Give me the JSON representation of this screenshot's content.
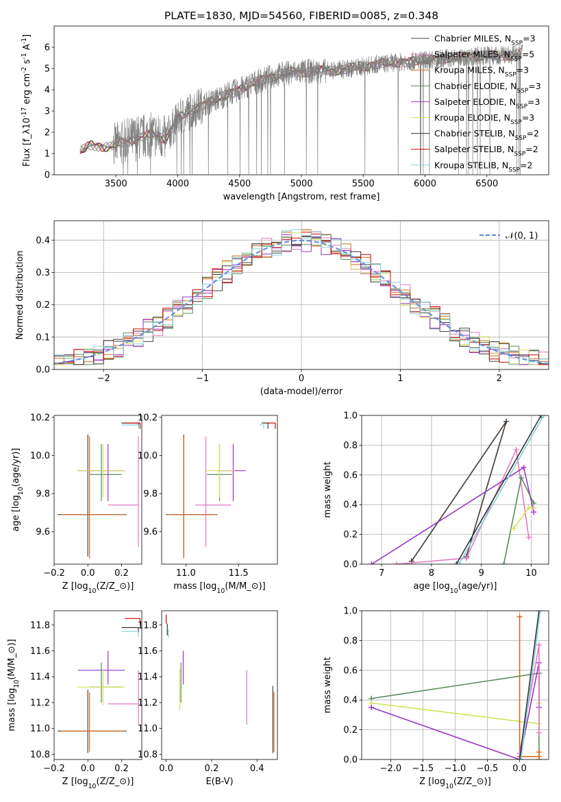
{
  "figure_title": "PLATE=1830, MJD=54560, FIBERID=0085, z=0.348",
  "model_colors": {
    "Chabrier MILES": "#444444",
    "Salpeter MILES": "#e377c2",
    "Kroupa MILES": "#d2691e",
    "Chabrier ELODIE": "#5a8a5a",
    "Salpeter ELODIE": "#9932cc",
    "Kroupa ELODIE": "#d4e157",
    "Chabrier STELIB": "#333333",
    "Salpeter STELIB": "#cc0000",
    "Kroupa STELIB": "#80d0d8"
  },
  "chart_data": [
    {
      "type": "line",
      "title": "PLATE=1830, MJD=54560, FIBERID=0085, z=0.348",
      "xlabel": "wavelength [Angstrom, rest frame]",
      "ylabel": "Flux [f$_\\lambda$$10^{-17}$ erg cm$^{-2}$ s$^{-1}$ A$^{-1}$]",
      "xlim": [
        3000,
        7000
      ],
      "ylim": [
        0,
        7
      ],
      "xticks": [
        3500,
        4000,
        4500,
        5000,
        5500,
        6000,
        6500
      ],
      "yticks": [
        0,
        1,
        2,
        3,
        4,
        5,
        6
      ],
      "legend_position": "top-right",
      "legend": [
        {
          "label": "Chabrier MILES, N$_{SSP}$=3",
          "color": "#444444"
        },
        {
          "label": "Salpeter MILES, N$_{SSP}$=5",
          "color": "#e377c2"
        },
        {
          "label": "Kroupa MILES, N$_{SSP}$=3",
          "color": "#d2691e"
        },
        {
          "label": "Chabrier ELODIE, N$_{SSP}$=3",
          "color": "#5a8a5a"
        },
        {
          "label": "Salpeter ELODIE, N$_{SSP}$=3",
          "color": "#9932cc"
        },
        {
          "label": "Kroupa ELODIE, N$_{SSP}$=3",
          "color": "#d4e157"
        },
        {
          "label": "Chabrier STELIB, N$_{SSP}$=2",
          "color": "#333333"
        },
        {
          "label": "Salpeter STELIB, N$_{SSP}$=2",
          "color": "#cc0000"
        },
        {
          "label": "Kroupa STELIB, N$_{SSP}$=2",
          "color": "#80d0d8"
        }
      ],
      "continuum": [
        [
          3210,
          1.1
        ],
        [
          3300,
          1.4
        ],
        [
          3450,
          1.3
        ],
        [
          3550,
          1.5
        ],
        [
          3650,
          1.7
        ],
        [
          3800,
          1.9
        ],
        [
          3900,
          1.7
        ],
        [
          4000,
          2.6
        ],
        [
          4100,
          3.0
        ],
        [
          4200,
          3.3
        ],
        [
          4300,
          3.5
        ],
        [
          4400,
          3.8
        ],
        [
          4500,
          4.0
        ],
        [
          4600,
          4.3
        ],
        [
          4700,
          4.5
        ],
        [
          4800,
          4.7
        ],
        [
          4900,
          4.8
        ],
        [
          5000,
          4.85
        ],
        [
          5200,
          4.9
        ],
        [
          5400,
          5.0
        ],
        [
          5600,
          5.2
        ],
        [
          5800,
          5.3
        ],
        [
          6000,
          5.4
        ],
        [
          6200,
          5.5
        ],
        [
          6400,
          5.6
        ],
        [
          6600,
          5.6
        ],
        [
          6780,
          5.7
        ]
      ]
    },
    {
      "type": "line",
      "xlabel": "(data-model)/error",
      "ylabel": "Normed distribution",
      "xlim": [
        -2.5,
        2.5
      ],
      "ylim": [
        0,
        0.46
      ],
      "xticks": [
        -2,
        -1,
        0,
        1,
        2
      ],
      "yticks": [
        0.0,
        0.1,
        0.2,
        0.3,
        0.4
      ],
      "grid": true,
      "legend_position": "top-right",
      "legend": [
        {
          "label": "$\\mathcal{N}(0,1)$",
          "color": "#6a8fd8",
          "style": "dashed"
        }
      ],
      "gaussian": {
        "mean": 0,
        "sigma": 1
      }
    },
    {
      "type": "scatter",
      "panel": "age-vs-Z",
      "xlabel": "Z [log$_{10}$(Z/Z$_\\odot$)]",
      "ylabel": "age  [log$_{10}$(age/yr)]",
      "xlim": [
        -0.2,
        0.32
      ],
      "ylim": [
        9.43,
        10.21
      ],
      "xticks": [
        -0.2,
        0.0,
        0.2
      ],
      "yticks": [
        9.6,
        9.8,
        10.0,
        10.2
      ],
      "points": [
        {
          "model": "Chabrier MILES",
          "x": 0.0,
          "xerr": [
            0.18,
            0.23
          ],
          "y": 9.69,
          "yerr": [
            0.22,
            0.42
          ]
        },
        {
          "model": "Kroupa MILES",
          "x": 0.01,
          "xerr": [
            0.17,
            0.21
          ],
          "y": 9.69,
          "yerr": [
            0.23,
            0.41
          ]
        },
        {
          "model": "Salpeter MILES",
          "x": 0.3,
          "xerr": [
            0.18,
            0.0
          ],
          "y": 9.74,
          "yerr": [
            0.22,
            0.36
          ]
        },
        {
          "model": "Chabrier ELODIE",
          "x": 0.08,
          "xerr": [
            0.07,
            0.12
          ],
          "y": 9.9,
          "yerr": [
            0.14,
            0.16
          ]
        },
        {
          "model": "Salpeter ELODIE",
          "x": 0.12,
          "xerr": [
            0.18,
            0.1
          ],
          "y": 9.92,
          "yerr": [
            0.16,
            0.14
          ]
        },
        {
          "model": "Kroupa ELODIE",
          "x": 0.09,
          "xerr": [
            0.15,
            0.13
          ],
          "y": 9.92,
          "yerr": [
            0.14,
            0.14
          ]
        },
        {
          "model": "Chabrier STELIB",
          "x": 0.3,
          "xerr": [
            0.1,
            0.0
          ],
          "y": 10.17,
          "yerr": [
            0.03,
            0.0
          ]
        },
        {
          "model": "Salpeter STELIB",
          "x": 0.31,
          "xerr": [
            0.09,
            0.0
          ],
          "y": 10.17,
          "yerr": [
            0.03,
            0.0
          ]
        },
        {
          "model": "Kroupa STELIB",
          "x": 0.3,
          "xerr": [
            0.1,
            0.0
          ],
          "y": 10.16,
          "yerr": [
            0.02,
            0.0
          ]
        }
      ]
    },
    {
      "type": "scatter",
      "panel": "age-vs-mass",
      "xlabel": "mass [log$_{10}$(M/M$_\\odot$)]",
      "ylabel": "",
      "xlim": [
        10.77,
        11.87
      ],
      "ylim": [
        9.43,
        10.21
      ],
      "xticks": [
        11.0,
        11.5
      ],
      "yticks": [
        9.6,
        9.8,
        10.0,
        10.2
      ],
      "points": [
        {
          "model": "Chabrier MILES",
          "x": 10.98,
          "xerr": [
            0.17,
            0.32
          ],
          "y": 9.69,
          "yerr": [
            0.22,
            0.42
          ]
        },
        {
          "model": "Kroupa MILES",
          "x": 10.98,
          "xerr": [
            0.16,
            0.3
          ],
          "y": 9.69,
          "yerr": [
            0.23,
            0.41
          ]
        },
        {
          "model": "Salpeter MILES",
          "x": 11.19,
          "xerr": [
            0.1,
            0.24
          ],
          "y": 9.74,
          "yerr": [
            0.22,
            0.36
          ]
        },
        {
          "model": "Chabrier ELODIE",
          "x": 11.32,
          "xerr": [
            0.12,
            0.12
          ],
          "y": 9.9,
          "yerr": [
            0.14,
            0.16
          ]
        },
        {
          "model": "Salpeter ELODIE",
          "x": 11.45,
          "xerr": [
            0.15,
            0.12
          ],
          "y": 9.92,
          "yerr": [
            0.16,
            0.14
          ]
        },
        {
          "model": "Kroupa ELODIE",
          "x": 11.32,
          "xerr": [
            0.14,
            0.14
          ],
          "y": 9.92,
          "yerr": [
            0.14,
            0.14
          ]
        },
        {
          "model": "Chabrier STELIB",
          "x": 11.78,
          "xerr": [
            0.06,
            0.0
          ],
          "y": 10.17,
          "yerr": [
            0.03,
            0.0
          ]
        },
        {
          "model": "Salpeter STELIB",
          "x": 11.85,
          "xerr": [
            0.08,
            0.0
          ],
          "y": 10.17,
          "yerr": [
            0.03,
            0.0
          ]
        },
        {
          "model": "Kroupa STELIB",
          "x": 11.74,
          "xerr": [
            0.04,
            0.0
          ],
          "y": 10.16,
          "yerr": [
            0.02,
            0.0
          ]
        }
      ]
    },
    {
      "type": "line",
      "panel": "weight-vs-age",
      "xlabel": "age  [log$_{10}$(age/yr)]",
      "ylabel": "mass weight",
      "xlim": [
        6.6,
        10.35
      ],
      "ylim": [
        0,
        1
      ],
      "xticks": [
        7,
        8,
        9,
        10
      ],
      "yticks": [
        0.0,
        0.2,
        0.4,
        0.6,
        0.8,
        1.0
      ],
      "grid": true,
      "series": [
        {
          "model": "Kroupa MILES",
          "x": [
            8.7,
            9.5,
            7.6
          ],
          "y": [
            0.05,
            0.96,
            0.02
          ]
        },
        {
          "model": "Chabrier MILES",
          "x": [
            8.7,
            9.5,
            7.6
          ],
          "y": [
            0.05,
            0.96,
            0.02
          ]
        },
        {
          "model": "Salpeter MILES",
          "x": [
            7.3,
            8.7,
            9.7,
            9.95
          ],
          "y": [
            0.0,
            0.04,
            0.77,
            0.18
          ]
        },
        {
          "model": "Salpeter ELODIE",
          "x": [
            6.8,
            9.85,
            10.05
          ],
          "y": [
            0.0,
            0.65,
            0.35
          ]
        },
        {
          "model": "Chabrier ELODIE",
          "x": [
            9.45,
            9.8,
            10.05
          ],
          "y": [
            0.0,
            0.58,
            0.41
          ]
        },
        {
          "model": "Kroupa ELODIE",
          "x": [
            9.65,
            9.95,
            10.05
          ],
          "y": [
            0.24,
            0.38,
            0.38
          ]
        },
        {
          "model": "Chabrier STELIB",
          "x": [
            8.5,
            10.2
          ],
          "y": [
            0.0,
            1.0
          ]
        },
        {
          "model": "Kroupa STELIB",
          "x": [
            8.55,
            10.25
          ],
          "y": [
            0.0,
            1.0
          ]
        }
      ]
    },
    {
      "type": "scatter",
      "panel": "mass-vs-Z",
      "xlabel": "Z [log$_{10}$(Z/Z$_\\odot$)]",
      "ylabel": "mass [log$_{10}$(M/M$_\\odot$)]",
      "xlim": [
        -0.2,
        0.32
      ],
      "ylim": [
        10.76,
        11.91
      ],
      "xticks": [
        -0.2,
        0.0,
        0.2
      ],
      "yticks": [
        10.8,
        11.0,
        11.2,
        11.4,
        11.6,
        11.8
      ],
      "points": [
        {
          "model": "Chabrier MILES",
          "x": 0.0,
          "xerr": [
            0.18,
            0.23
          ],
          "y": 10.98,
          "yerr": [
            0.17,
            0.32
          ]
        },
        {
          "model": "Kroupa MILES",
          "x": 0.01,
          "xerr": [
            0.17,
            0.21
          ],
          "y": 10.98,
          "yerr": [
            0.16,
            0.3
          ]
        },
        {
          "model": "Salpeter MILES",
          "x": 0.3,
          "xerr": [
            0.18,
            0.0
          ],
          "y": 11.19,
          "yerr": [
            0.16,
            0.26
          ]
        },
        {
          "model": "Chabrier ELODIE",
          "x": 0.08,
          "xerr": [
            0.07,
            0.12
          ],
          "y": 11.32,
          "yerr": [
            0.12,
            0.19
          ]
        },
        {
          "model": "Salpeter ELODIE",
          "x": 0.12,
          "xerr": [
            0.18,
            0.1
          ],
          "y": 11.45,
          "yerr": [
            0.11,
            0.15
          ]
        },
        {
          "model": "Kroupa ELODIE",
          "x": 0.09,
          "xerr": [
            0.15,
            0.13
          ],
          "y": 11.32,
          "yerr": [
            0.14,
            0.14
          ]
        },
        {
          "model": "Chabrier STELIB",
          "x": 0.3,
          "xerr": [
            0.1,
            0.0
          ],
          "y": 11.78,
          "yerr": [
            0.04,
            0.0
          ]
        },
        {
          "model": "Salpeter STELIB",
          "x": 0.31,
          "xerr": [
            0.09,
            0.0
          ],
          "y": 11.85,
          "yerr": [
            0.05,
            0.0
          ]
        },
        {
          "model": "Kroupa STELIB",
          "x": 0.3,
          "xerr": [
            0.1,
            0.0
          ],
          "y": 11.75,
          "yerr": [
            0.04,
            0.0
          ]
        }
      ]
    },
    {
      "type": "scatter",
      "panel": "mass-vs-EBV",
      "xlabel": "E(B-V)",
      "ylabel": "",
      "xlim": [
        -0.02,
        0.49
      ],
      "ylim": [
        10.76,
        11.91
      ],
      "xticks": [
        0.0,
        0.2,
        0.4
      ],
      "yticks": [
        10.8,
        11.0,
        11.2,
        11.4,
        11.6,
        11.8
      ],
      "points": [
        {
          "model": "Chabrier MILES",
          "x": 0.47,
          "y": 10.98,
          "yerr": [
            0.17,
            0.35
          ]
        },
        {
          "model": "Kroupa MILES",
          "x": 0.475,
          "y": 10.98,
          "yerr": [
            0.16,
            0.3
          ]
        },
        {
          "model": "Salpeter MILES",
          "x": 0.355,
          "y": 11.19,
          "yerr": [
            0.16,
            0.26
          ]
        },
        {
          "model": "Chabrier ELODIE",
          "x": 0.065,
          "y": 11.32,
          "yerr": [
            0.12,
            0.19
          ]
        },
        {
          "model": "Salpeter ELODIE",
          "x": 0.075,
          "y": 11.45,
          "yerr": [
            0.11,
            0.15
          ]
        },
        {
          "model": "Kroupa ELODIE",
          "x": 0.06,
          "y": 11.32,
          "yerr": [
            0.18,
            0.14
          ]
        },
        {
          "model": "Chabrier STELIB",
          "x": 0.005,
          "y": 11.78,
          "yerr": [
            0.06,
            0.03
          ]
        },
        {
          "model": "Salpeter STELIB",
          "x": 0.0,
          "y": 11.85,
          "yerr": [
            0.04,
            0.03
          ]
        },
        {
          "model": "Kroupa STELIB",
          "x": 0.01,
          "y": 11.75,
          "yerr": [
            0.05,
            0.02
          ]
        }
      ]
    },
    {
      "type": "line",
      "panel": "weight-vs-Z",
      "xlabel": "Z [log$_{10}$(Z/Z$_\\odot$)]",
      "ylabel": "mass weight",
      "xlim": [
        -2.45,
        0.45
      ],
      "ylim": [
        0,
        1
      ],
      "xticks": [
        -2.0,
        -1.5,
        -1.0,
        -0.5,
        0.0
      ],
      "yticks": [
        0.0,
        0.2,
        0.4,
        0.6,
        0.8,
        1.0
      ],
      "grid": true,
      "series": [
        {
          "model": "Chabrier ELODIE",
          "x": [
            -2.3,
            0.3,
            0.3
          ],
          "y": [
            0.41,
            0.58,
            0.0
          ]
        },
        {
          "model": "Kroupa ELODIE",
          "x": [
            -2.3,
            0.3,
            0.3
          ],
          "y": [
            0.38,
            0.24,
            0.38
          ]
        },
        {
          "model": "Salpeter ELODIE",
          "x": [
            -2.3,
            0.0,
            0.3,
            0.3
          ],
          "y": [
            0.35,
            0.0,
            0.65,
            0.35
          ]
        },
        {
          "model": "Kroupa MILES",
          "x": [
            0.0,
            0.0,
            0.3,
            0.3
          ],
          "y": [
            0.96,
            0.02,
            0.02,
            0.05
          ]
        },
        {
          "model": "Salpeter MILES",
          "x": [
            0.0,
            0.3,
            0.3
          ],
          "y": [
            0.04,
            0.77,
            0.18
          ]
        },
        {
          "model": "Chabrier STELIB",
          "x": [
            0.0,
            0.3
          ],
          "y": [
            0.0,
            1.0
          ]
        },
        {
          "model": "Kroupa STELIB",
          "x": [
            0.02,
            0.32
          ],
          "y": [
            0.0,
            1.0
          ]
        }
      ]
    }
  ]
}
